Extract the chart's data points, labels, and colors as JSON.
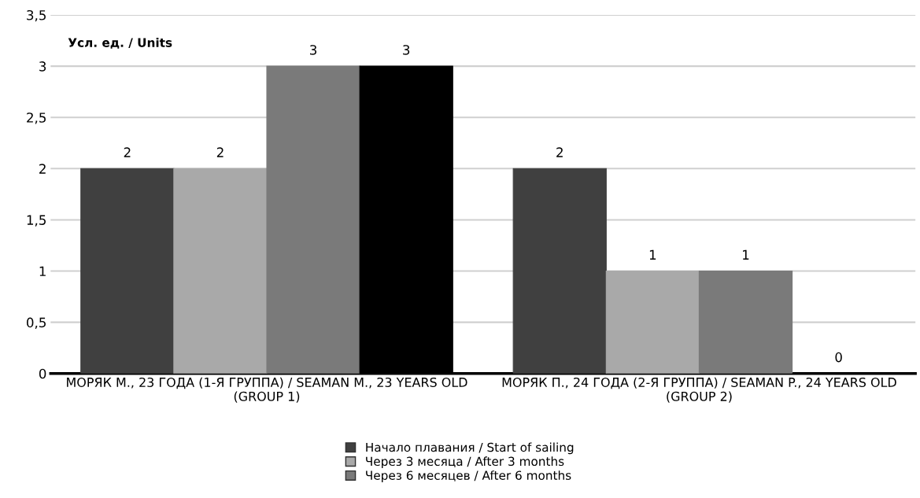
{
  "chart_data": {
    "type": "bar",
    "ylabel": "Усл. ед. / Units",
    "categories": [
      "МОРЯК М., 23 ГОДА (1-Я ГРУППА) / SEAMAN M., 23 YEARS OLD (GROUP 1)",
      "МОРЯК П., 24 ГОДА (2-Я ГРУППА) / SEAMAN P., 24 YEARS OLD (GROUP 2)"
    ],
    "series": [
      {
        "name": "Начало плавания / Start of sailing",
        "color": "#404040",
        "values": [
          2,
          2
        ]
      },
      {
        "name": "Через 3 месяца / After 3 months",
        "color": "#a9a9a9",
        "values": [
          2,
          1
        ]
      },
      {
        "name": "Через 6 месяцев / After 6 months",
        "color": "#7a7a7a",
        "values": [
          3,
          1
        ]
      },
      {
        "color": "#000000",
        "values": [
          3,
          0
        ]
      }
    ],
    "ylim": [
      0,
      3.5
    ],
    "yticks": [
      {
        "value": 0,
        "label": "0"
      },
      {
        "value": 0.5,
        "label": "0,5"
      },
      {
        "value": 1,
        "label": "1"
      },
      {
        "value": 1.5,
        "label": "1,5"
      },
      {
        "value": 2,
        "label": "2"
      },
      {
        "value": 2.5,
        "label": "2,5"
      },
      {
        "value": 3,
        "label": "3"
      },
      {
        "value": 3.5,
        "label": "3,5"
      }
    ],
    "grid": "y",
    "legend": "bottom",
    "data_labels": true
  }
}
